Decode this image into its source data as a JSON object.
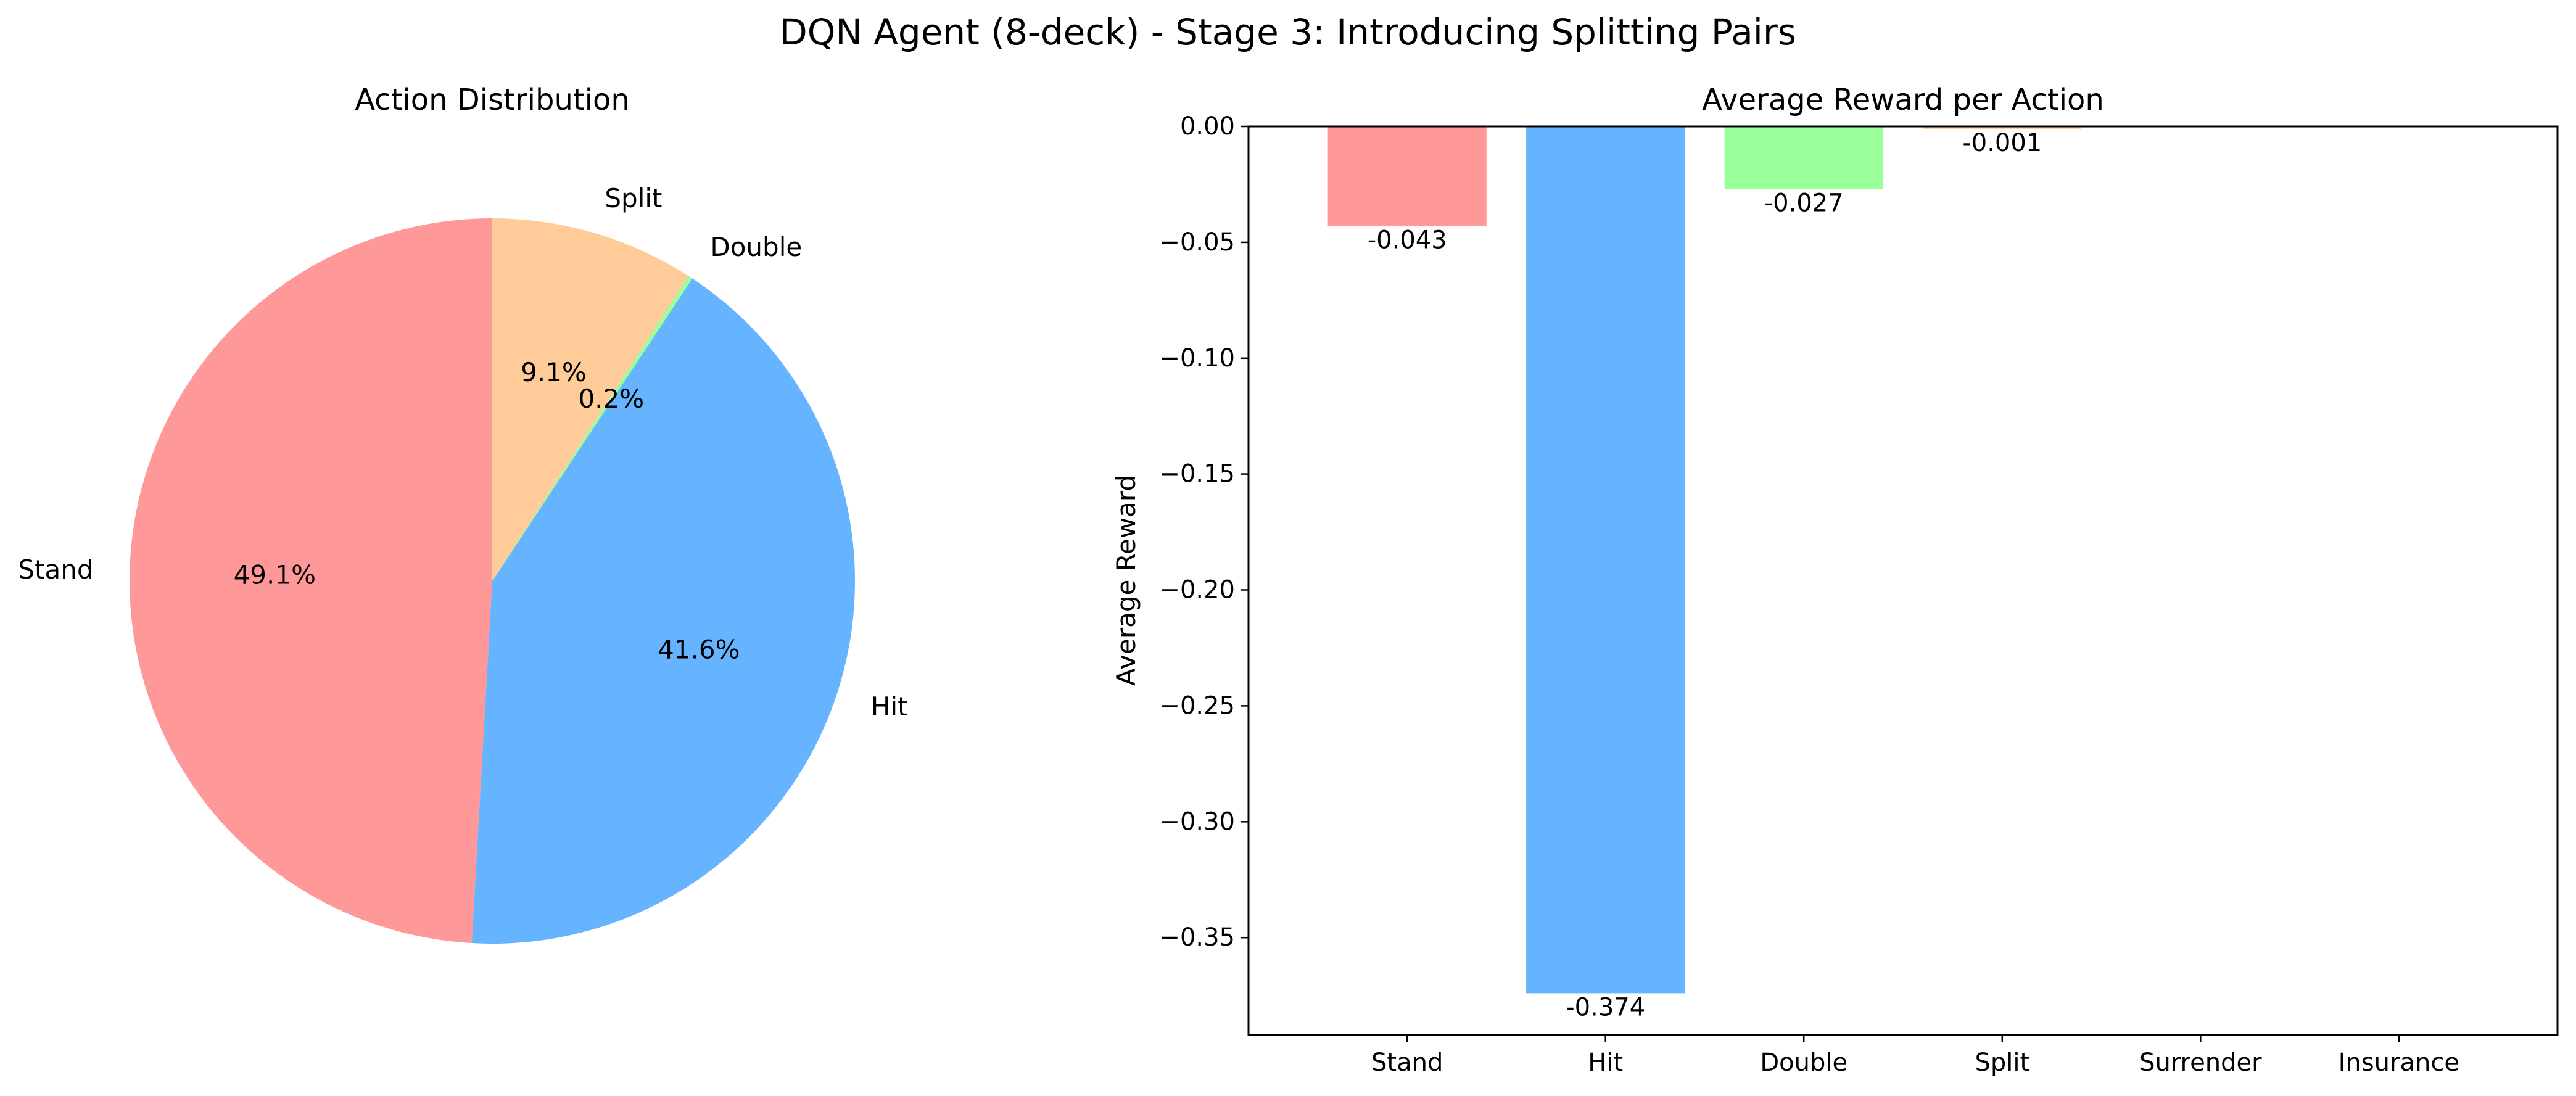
{
  "figure": {
    "title": "DQN Agent (8-deck) - Stage 3: Introducing Splitting Pairs"
  },
  "chart_data": [
    {
      "type": "pie",
      "title": "Action Distribution",
      "start_angle_deg": 90,
      "direction": "counterclockwise",
      "slices": [
        {
          "label": "Stand",
          "value": 49.1,
          "pct_label": "49.1%",
          "color": "#ff9999"
        },
        {
          "label": "Hit",
          "value": 41.6,
          "pct_label": "41.6%",
          "color": "#66b3ff"
        },
        {
          "label": "Double",
          "value": 0.2,
          "pct_label": "0.2%",
          "color": "#99ff99"
        },
        {
          "label": "Split",
          "value": 9.1,
          "pct_label": "9.1%",
          "color": "#ffcc99"
        }
      ]
    },
    {
      "type": "bar",
      "title": "Average Reward per Action",
      "xlabel": "",
      "ylabel": "Average Reward",
      "categories": [
        "Stand",
        "Hit",
        "Double",
        "Split",
        "Surrender",
        "Insurance"
      ],
      "values": [
        -0.043,
        -0.374,
        -0.027,
        -0.001,
        null,
        null
      ],
      "value_labels": [
        "-0.043",
        "-0.374",
        "-0.027",
        "-0.001",
        "",
        ""
      ],
      "colors": [
        "#ff9999",
        "#66b3ff",
        "#99ff99",
        "#ffcc99",
        "#ff99cc",
        "#c2c2f0"
      ],
      "ylim": [
        -0.392,
        0.0
      ],
      "yticks": [
        0.0,
        -0.05,
        -0.1,
        -0.15,
        -0.2,
        -0.25,
        -0.3,
        -0.35
      ],
      "ytick_labels": [
        "0.00",
        "−0.05",
        "−0.10",
        "−0.15",
        "−0.20",
        "−0.25",
        "−0.30",
        "−0.35"
      ],
      "grid": false
    }
  ]
}
